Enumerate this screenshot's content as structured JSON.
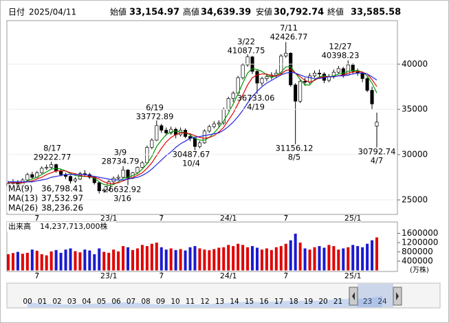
{
  "header": {
    "date_label": "日付",
    "date": "2025/04/11",
    "fields": [
      {
        "label": "始値",
        "value": "33,154.97",
        "color": "#000000"
      },
      {
        "label": "高値",
        "value": "34,639.39",
        "color": "#e00000"
      },
      {
        "label": "安値",
        "value": "30,792.74",
        "color": "#008000"
      },
      {
        "label": "終値",
        "value": "33,585.58",
        "color": "#000000"
      }
    ]
  },
  "chart_data": {
    "type": "candlestick",
    "categories": [
      null,
      null,
      null,
      null,
      null,
      null,
      "7",
      null,
      null,
      null,
      null,
      null,
      null,
      null,
      null,
      null,
      null,
      null,
      null,
      null,
      null,
      "23/1",
      null,
      null,
      null,
      null,
      null,
      null,
      null,
      null,
      null,
      null,
      "7",
      null,
      null,
      null,
      null,
      null,
      null,
      null,
      null,
      null,
      null,
      null,
      null,
      null,
      "24/1",
      null,
      null,
      null,
      null,
      null,
      null,
      null,
      null,
      null,
      null,
      null,
      "7",
      null,
      null,
      null,
      null,
      null,
      null,
      null,
      null,
      null,
      null,
      null,
      null,
      null,
      "25/1",
      null,
      null,
      null,
      null,
      null
    ],
    "ohlc": [
      [
        26600,
        27100,
        26400,
        26800
      ],
      [
        26800,
        27300,
        26600,
        27000
      ],
      [
        27000,
        27200,
        26300,
        26500
      ],
      [
        26500,
        27400,
        26400,
        27200
      ],
      [
        27200,
        28000,
        27000,
        27800
      ],
      [
        27800,
        28100,
        27300,
        27500
      ],
      [
        27500,
        28200,
        27400,
        28000
      ],
      [
        28000,
        28700,
        27900,
        28500
      ],
      [
        28500,
        28900,
        28300,
        28600
      ],
      [
        28600,
        29222.77,
        28400,
        28900
      ],
      [
        28900,
        29000,
        28000,
        28200
      ],
      [
        28200,
        28400,
        27600,
        27800
      ],
      [
        27800,
        28000,
        27300,
        27600
      ],
      [
        27600,
        27700,
        26800,
        27100
      ],
      [
        27100,
        27500,
        26900,
        27300
      ],
      [
        27300,
        28100,
        27200,
        27900
      ],
      [
        27900,
        28300,
        27600,
        27800
      ],
      [
        27800,
        28000,
        27300,
        27500
      ],
      [
        27500,
        27600,
        26700,
        26900
      ],
      [
        26900,
        27000,
        25700,
        26000
      ],
      [
        26000,
        26300,
        25800,
        26100
      ],
      [
        26100,
        27200,
        26000,
        27000
      ],
      [
        27000,
        27600,
        26800,
        27400
      ],
      [
        27400,
        27800,
        27200,
        27500
      ],
      [
        27500,
        28734.79,
        27400,
        28300
      ],
      [
        28300,
        28400,
        26632.92,
        27400
      ],
      [
        27400,
        28100,
        27300,
        28000
      ],
      [
        28000,
        28700,
        27900,
        28600
      ],
      [
        28600,
        29300,
        28500,
        29100
      ],
      [
        29100,
        31000,
        29000,
        30800
      ],
      [
        30800,
        31800,
        30600,
        31600
      ],
      [
        31600,
        33772.89,
        31500,
        33200
      ],
      [
        33200,
        33400,
        32400,
        32700
      ],
      [
        32700,
        33000,
        32100,
        32400
      ],
      [
        32400,
        33100,
        32200,
        32800
      ],
      [
        32800,
        33000,
        31800,
        32200
      ],
      [
        32200,
        33000,
        32000,
        32700
      ],
      [
        32700,
        32900,
        31800,
        32000
      ],
      [
        32000,
        32300,
        31500,
        31800
      ],
      [
        31800,
        32000,
        30487.67,
        30900
      ],
      [
        30900,
        31500,
        30700,
        31300
      ],
      [
        31300,
        32800,
        31200,
        32600
      ],
      [
        32600,
        33300,
        32400,
        33100
      ],
      [
        33100,
        33700,
        32900,
        33400
      ],
      [
        33400,
        33800,
        33000,
        33500
      ],
      [
        33500,
        35200,
        33300,
        35000
      ],
      [
        35000,
        36400,
        34800,
        36200
      ],
      [
        36200,
        37000,
        35800,
        36800
      ],
      [
        36800,
        38700,
        36700,
        38500
      ],
      [
        38500,
        40100,
        38300,
        39900
      ],
      [
        39900,
        41087.75,
        39700,
        40800
      ],
      [
        40800,
        40900,
        38900,
        39200
      ],
      [
        39200,
        39400,
        36733.06,
        37900
      ],
      [
        37900,
        38600,
        37600,
        38400
      ],
      [
        38400,
        38900,
        38100,
        38600
      ],
      [
        38600,
        39100,
        38300,
        38800
      ],
      [
        38800,
        39400,
        38500,
        39000
      ],
      [
        39000,
        41100,
        38900,
        40900
      ],
      [
        40900,
        42426.77,
        40700,
        41200
      ],
      [
        41200,
        41300,
        37500,
        37700
      ],
      [
        37700,
        37900,
        31156.12,
        35900
      ],
      [
        35900,
        38300,
        35700,
        38100
      ],
      [
        38100,
        38500,
        37600,
        38000
      ],
      [
        38000,
        39000,
        37800,
        38700
      ],
      [
        38700,
        39300,
        38500,
        39000
      ],
      [
        39000,
        39400,
        38600,
        38900
      ],
      [
        38900,
        39100,
        37900,
        38200
      ],
      [
        38200,
        38900,
        38000,
        38600
      ],
      [
        38600,
        39400,
        38400,
        39100
      ],
      [
        39100,
        39800,
        38900,
        39500
      ],
      [
        39500,
        39700,
        38500,
        38800
      ],
      [
        38800,
        40398.23,
        38700,
        39900
      ],
      [
        39900,
        40100,
        38900,
        39200
      ],
      [
        39200,
        39500,
        38700,
        39000
      ],
      [
        39000,
        39200,
        38000,
        38400
      ],
      [
        38400,
        38600,
        36900,
        37100
      ],
      [
        37100,
        37500,
        35000,
        35600
      ],
      [
        33154.97,
        34639.39,
        30792.74,
        33585.58
      ]
    ],
    "candle_up_fill": "#ffffff",
    "candle_down_fill": "#000000",
    "ylim": [
      23400,
      44800
    ],
    "yticks": [
      25000,
      30000,
      35000,
      40000
    ],
    "moving_averages": [
      {
        "name": "MA(9)",
        "color": "#009900",
        "label": "36,798.41",
        "values": [
          26900,
          26900,
          26850,
          26900,
          27100,
          27300,
          27500,
          27800,
          28100,
          28400,
          28500,
          28400,
          28200,
          27900,
          27700,
          27600,
          27600,
          27600,
          27400,
          27000,
          26700,
          26600,
          26700,
          27000,
          27400,
          27500,
          27700,
          27900,
          28400,
          29000,
          29800,
          30900,
          31600,
          32200,
          32500,
          32600,
          32500,
          32400,
          32200,
          31800,
          31600,
          31600,
          31900,
          32400,
          33000,
          33700,
          34600,
          35600,
          36700,
          37900,
          39000,
          39500,
          39400,
          39200,
          38800,
          38500,
          38700,
          39100,
          39700,
          39700,
          39000,
          38300,
          37700,
          37700,
          38300,
          38600,
          38700,
          38600,
          38700,
          38900,
          39000,
          39200,
          39300,
          39300,
          39100,
          38700,
          37900,
          36798.41
        ]
      },
      {
        "name": "MA(13)",
        "color": "#e00000",
        "label": "37,532.97",
        "values": [
          26900,
          26900,
          26900,
          26900,
          27000,
          27100,
          27300,
          27500,
          27800,
          28000,
          28200,
          28200,
          28200,
          28000,
          27900,
          27700,
          27600,
          27600,
          27500,
          27300,
          27000,
          26800,
          26800,
          26900,
          27100,
          27300,
          27500,
          27700,
          28000,
          28500,
          29100,
          29900,
          30700,
          31400,
          31900,
          32200,
          32400,
          32400,
          32300,
          32100,
          31900,
          31800,
          31900,
          32100,
          32500,
          33000,
          33800,
          34600,
          35600,
          36600,
          37700,
          38500,
          38800,
          38900,
          38900,
          38700,
          38700,
          38900,
          39300,
          39400,
          39000,
          38600,
          38200,
          38000,
          38200,
          38500,
          38600,
          38600,
          38600,
          38700,
          38800,
          39000,
          39100,
          39200,
          39100,
          38900,
          38300,
          37532.97
        ]
      },
      {
        "name": "MA(26)",
        "color": "#2222dd",
        "label": "38,236.26",
        "values": [
          27000,
          27000,
          27000,
          27000,
          27000,
          27000,
          27100,
          27200,
          27300,
          27500,
          27600,
          27700,
          27800,
          27800,
          27800,
          27800,
          27800,
          27700,
          27600,
          27500,
          27400,
          27300,
          27200,
          27200,
          27200,
          27300,
          27400,
          27500,
          27700,
          28000,
          28400,
          28900,
          29400,
          29900,
          30300,
          30800,
          31200,
          31500,
          31800,
          31900,
          32000,
          32100,
          32200,
          32300,
          32400,
          32700,
          33100,
          33600,
          34200,
          34900,
          35700,
          36400,
          37000,
          37500,
          37900,
          38200,
          38500,
          38800,
          39000,
          39100,
          39000,
          38800,
          38600,
          38500,
          38400,
          38400,
          38500,
          38600,
          38600,
          38700,
          38700,
          38800,
          38900,
          39000,
          39000,
          38900,
          38600,
          38236.26
        ]
      }
    ],
    "annotations": [
      {
        "date": "8/17",
        "value": 29222.77
      },
      {
        "date": "3/9",
        "value": 28734.79
      },
      {
        "date": "6/19",
        "value": 33772.89
      },
      {
        "date": "3/22",
        "value": 41087.75
      },
      {
        "date": "7/11",
        "value": 42426.77
      },
      {
        "date": "12/27",
        "value": 40398.23
      },
      {
        "date": "4/19",
        "value": 36733.06
      },
      {
        "date": "10/4",
        "value": 30487.67
      },
      {
        "date": "8/5",
        "value": 31156.12
      },
      {
        "date": "4/7",
        "value": 30792.74
      },
      {
        "date": "3/16",
        "value": 26632.92
      }
    ],
    "volume": {
      "title": "出来高",
      "total": "14,237,713,000株",
      "unit": "(万株)",
      "up_color": "#e00000",
      "down_color": "#1a1ad0",
      "values": [
        700000,
        750000,
        800000,
        720000,
        760000,
        900000,
        850000,
        700000,
        650000,
        820000,
        880000,
        760000,
        900000,
        950000,
        830000,
        780000,
        900000,
        860000,
        700000,
        950000,
        800000,
        760000,
        900000,
        820000,
        1050000,
        1000000,
        880000,
        950000,
        1100000,
        1050000,
        1150000,
        1200000,
        1000000,
        900000,
        950000,
        880000,
        920000,
        860000,
        1000000,
        1050000,
        950000,
        900000,
        870000,
        920000,
        980000,
        1000000,
        1100000,
        1050000,
        1150000,
        1100000,
        1000000,
        1050000,
        980000,
        900000,
        950000,
        880000,
        1000000,
        1050000,
        1150000,
        1300000,
        1585000,
        1200000,
        950000,
        900000,
        1000000,
        1050000,
        980000,
        1100000,
        1050000,
        900000,
        950000,
        1000000,
        1100000,
        1050000,
        1000000,
        1150000,
        1300000,
        1423771.3
      ],
      "ylim": [
        0,
        2090000
      ],
      "yticks": [
        400000,
        800000,
        1200000,
        1600000
      ]
    },
    "navigator": {
      "labels": [
        "00",
        "01",
        "02",
        "03",
        "04",
        "05",
        "06",
        "07",
        "08",
        "09",
        "10",
        "11",
        "12",
        "13",
        "14",
        "15",
        "16",
        "17",
        "18",
        "19",
        "20",
        "21",
        "22",
        "23",
        "24"
      ],
      "values": [
        17000,
        12000,
        10000,
        9000,
        11000,
        13000,
        16000,
        17000,
        12000,
        9000,
        10000,
        9500,
        9000,
        14000,
        16000,
        19000,
        17000,
        20000,
        22000,
        21500,
        22000,
        28500,
        27000,
        30000,
        38000
      ],
      "ylim": [
        0,
        80000
      ],
      "color": "#aac4ee"
    }
  }
}
